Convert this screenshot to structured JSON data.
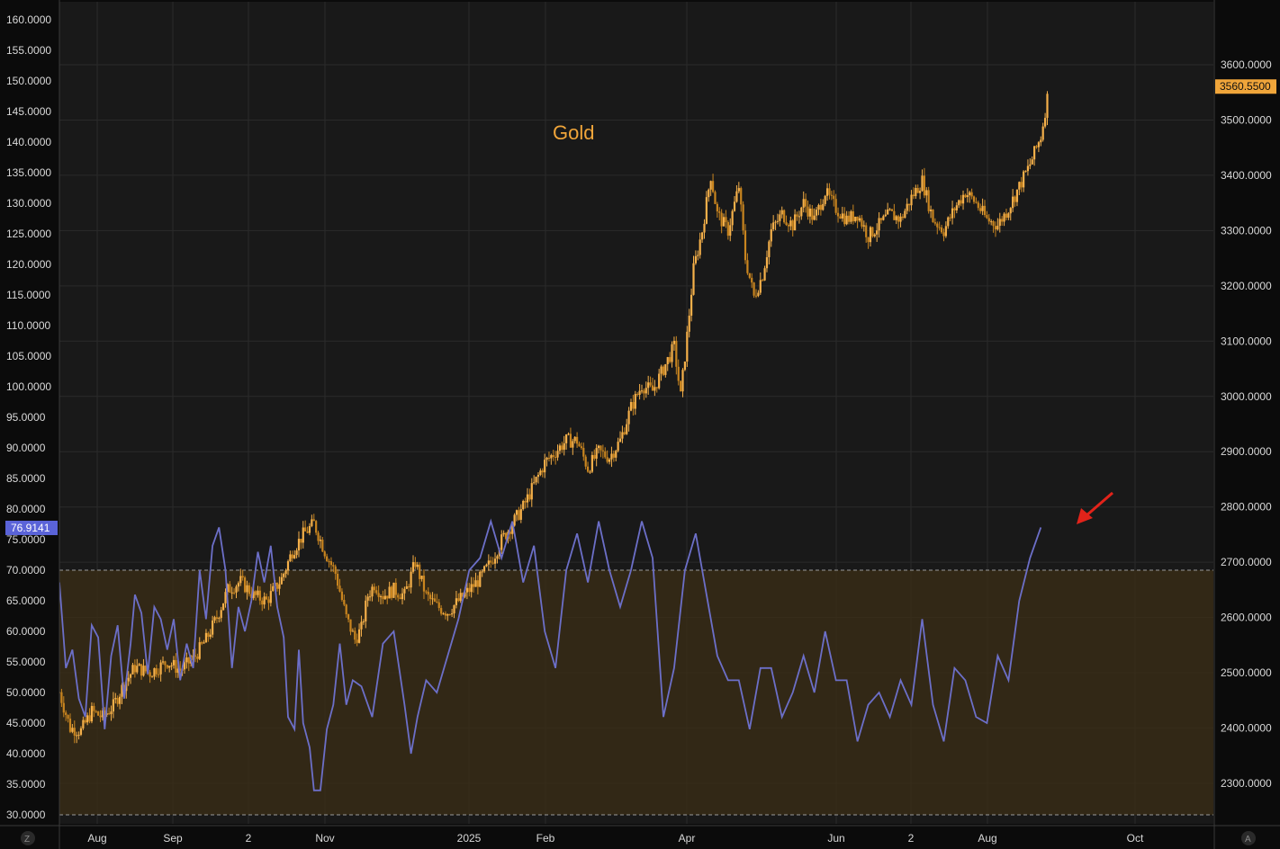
{
  "colors": {
    "background": "#0b0b0b",
    "plot_background": "#191919",
    "grid": "#2a2a2a",
    "gold": "#f0a53a",
    "rsi": "#6c6fc8",
    "overbought_band": "#3b2e16",
    "arrow": "#e2231a"
  },
  "corner_icons": {
    "left": "Z",
    "right": "A"
  },
  "chart_data": [
    {
      "type": "candlestick",
      "title": "Gold",
      "axis": "right",
      "ylim": [
        2220,
        3720
      ],
      "y_ticks": [
        "3600.0000",
        "3500.0000",
        "3400.0000",
        "3300.0000",
        "3200.0000",
        "3100.0000",
        "3000.0000",
        "2900.0000",
        "2800.0000",
        "2700.0000",
        "2600.0000",
        "2500.0000",
        "2400.0000",
        "2300.0000"
      ],
      "last_value_label": "3560.5500",
      "x_labels": [
        "Aug",
        "Sep",
        "2",
        "Nov",
        "2025",
        "Feb",
        "Apr",
        "Jun",
        "2",
        "Aug",
        "Oct"
      ],
      "anchors": [
        [
          0,
          2465
        ],
        [
          5,
          2400
        ],
        [
          10,
          2395
        ],
        [
          15,
          2430
        ],
        [
          20,
          2420
        ],
        [
          25,
          2440
        ],
        [
          30,
          2480
        ],
        [
          35,
          2510
        ],
        [
          42,
          2500
        ],
        [
          50,
          2520
        ],
        [
          56,
          2505
        ],
        [
          62,
          2525
        ],
        [
          68,
          2560
        ],
        [
          73,
          2600
        ],
        [
          78,
          2650
        ],
        [
          84,
          2665
        ],
        [
          90,
          2640
        ],
        [
          96,
          2630
        ],
        [
          103,
          2670
        ],
        [
          108,
          2720
        ],
        [
          113,
          2750
        ],
        [
          118,
          2770
        ],
        [
          123,
          2720
        ],
        [
          128,
          2680
        ],
        [
          133,
          2600
        ],
        [
          137,
          2560
        ],
        [
          140,
          2580
        ],
        [
          143,
          2640
        ],
        [
          146,
          2660
        ],
        [
          150,
          2640
        ],
        [
          155,
          2650
        ],
        [
          160,
          2640
        ],
        [
          165,
          2700
        ],
        [
          170,
          2640
        ],
        [
          175,
          2620
        ],
        [
          180,
          2610
        ],
        [
          185,
          2630
        ],
        [
          190,
          2650
        ],
        [
          195,
          2670
        ],
        [
          200,
          2700
        ],
        [
          205,
          2740
        ],
        [
          210,
          2770
        ],
        [
          215,
          2800
        ],
        [
          220,
          2840
        ],
        [
          225,
          2880
        ],
        [
          230,
          2900
        ],
        [
          235,
          2920
        ],
        [
          240,
          2920
        ],
        [
          245,
          2870
        ],
        [
          250,
          2900
        ],
        [
          255,
          2890
        ],
        [
          260,
          2920
        ],
        [
          265,
          2980
        ],
        [
          270,
          3020
        ],
        [
          275,
          3010
        ],
        [
          280,
          3050
        ],
        [
          285,
          3090
        ],
        [
          288,
          3000
        ],
        [
          291,
          3110
        ],
        [
          294,
          3230
        ],
        [
          298,
          3300
        ],
        [
          302,
          3400
        ],
        [
          305,
          3330
        ],
        [
          310,
          3300
        ],
        [
          315,
          3380
        ],
        [
          318,
          3250
        ],
        [
          322,
          3180
        ],
        [
          326,
          3220
        ],
        [
          330,
          3300
        ],
        [
          335,
          3330
        ],
        [
          340,
          3310
        ],
        [
          345,
          3350
        ],
        [
          350,
          3320
        ],
        [
          355,
          3370
        ],
        [
          360,
          3340
        ],
        [
          365,
          3320
        ],
        [
          370,
          3330
        ],
        [
          375,
          3290
        ],
        [
          380,
          3310
        ],
        [
          385,
          3330
        ],
        [
          390,
          3320
        ],
        [
          395,
          3360
        ],
        [
          400,
          3390
        ],
        [
          405,
          3320
        ],
        [
          410,
          3300
        ],
        [
          415,
          3340
        ],
        [
          420,
          3370
        ],
        [
          425,
          3350
        ],
        [
          430,
          3320
        ],
        [
          435,
          3310
        ],
        [
          440,
          3340
        ],
        [
          445,
          3380
        ],
        [
          450,
          3420
        ],
        [
          455,
          3470
        ],
        [
          458,
          3540
        ]
      ],
      "series": [
        {
          "candles": "generated from anchors"
        }
      ]
    },
    {
      "type": "line",
      "axis": "left",
      "ylim": [
        29.3,
        162
      ],
      "y_ticks": [
        "160.0000",
        "155.0000",
        "150.0000",
        "145.0000",
        "140.0000",
        "135.0000",
        "130.0000",
        "125.0000",
        "120.0000",
        "115.0000",
        "110.0000",
        "105.0000",
        "100.0000",
        "95.0000",
        "90.0000",
        "85.0000",
        "80.0000",
        "75.0000",
        "70.0000",
        "65.0000",
        "60.0000",
        "55.0000",
        "50.0000",
        "45.0000",
        "40.0000",
        "35.0000",
        "30.0000"
      ],
      "last_value_label": "76.9141",
      "overbought_level": 70,
      "oversold_level": 30,
      "series": [
        {
          "values": [
            [
              0,
              68
            ],
            [
              3,
              54
            ],
            [
              6,
              57
            ],
            [
              9,
              49
            ],
            [
              12,
              46
            ],
            [
              15,
              61
            ],
            [
              18,
              59
            ],
            [
              21,
              44
            ],
            [
              24,
              56
            ],
            [
              27,
              61
            ],
            [
              30,
              49
            ],
            [
              33,
              58
            ],
            [
              35,
              66
            ],
            [
              38,
              63
            ],
            [
              41,
              53
            ],
            [
              44,
              64
            ],
            [
              47,
              62
            ],
            [
              50,
              57
            ],
            [
              53,
              62
            ],
            [
              56,
              52
            ],
            [
              59,
              58
            ],
            [
              62,
              54
            ],
            [
              65,
              70
            ],
            [
              68,
              62
            ],
            [
              71,
              74
            ],
            [
              74,
              77
            ],
            [
              77,
              70
            ],
            [
              80,
              54
            ],
            [
              83,
              64
            ],
            [
              86,
              60
            ],
            [
              89,
              65
            ],
            [
              92,
              73
            ],
            [
              95,
              68
            ],
            [
              98,
              74
            ],
            [
              101,
              64
            ],
            [
              104,
              59
            ],
            [
              106,
              46
            ],
            [
              109,
              44
            ],
            [
              111,
              57
            ],
            [
              113,
              45
            ],
            [
              116,
              41
            ],
            [
              118,
              34
            ],
            [
              121,
              34
            ],
            [
              124,
              44
            ],
            [
              127,
              48
            ],
            [
              130,
              58
            ],
            [
              133,
              48
            ],
            [
              136,
              52
            ],
            [
              140,
              51
            ],
            [
              145,
              46
            ],
            [
              150,
              58
            ],
            [
              155,
              60
            ],
            [
              160,
              48
            ],
            [
              163,
              40
            ],
            [
              166,
              46
            ],
            [
              170,
              52
            ],
            [
              175,
              50
            ],
            [
              180,
              56
            ],
            [
              185,
              62
            ],
            [
              190,
              70
            ],
            [
              195,
              72
            ],
            [
              200,
              78
            ],
            [
              205,
              72
            ],
            [
              210,
              78
            ],
            [
              215,
              68
            ],
            [
              220,
              74
            ],
            [
              225,
              60
            ],
            [
              230,
              54
            ],
            [
              235,
              70
            ],
            [
              240,
              76
            ],
            [
              245,
              68
            ],
            [
              250,
              78
            ],
            [
              255,
              70
            ],
            [
              260,
              64
            ],
            [
              265,
              70
            ],
            [
              270,
              78
            ],
            [
              275,
              72
            ],
            [
              280,
              46
            ],
            [
              285,
              54
            ],
            [
              290,
              70
            ],
            [
              295,
              76
            ],
            [
              300,
              66
            ],
            [
              305,
              56
            ],
            [
              310,
              52
            ],
            [
              315,
              52
            ],
            [
              320,
              44
            ],
            [
              325,
              54
            ],
            [
              330,
              54
            ],
            [
              335,
              46
            ],
            [
              340,
              50
            ],
            [
              345,
              56
            ],
            [
              350,
              50
            ],
            [
              355,
              60
            ],
            [
              360,
              52
            ],
            [
              365,
              52
            ],
            [
              370,
              42
            ],
            [
              375,
              48
            ],
            [
              380,
              50
            ],
            [
              385,
              46
            ],
            [
              390,
              52
            ],
            [
              395,
              48
            ],
            [
              400,
              62
            ],
            [
              405,
              48
            ],
            [
              410,
              42
            ],
            [
              415,
              54
            ],
            [
              420,
              52
            ],
            [
              425,
              46
            ],
            [
              430,
              45
            ],
            [
              435,
              56
            ],
            [
              440,
              52
            ],
            [
              445,
              65
            ],
            [
              450,
              72
            ],
            [
              455,
              77
            ]
          ]
        }
      ]
    }
  ]
}
